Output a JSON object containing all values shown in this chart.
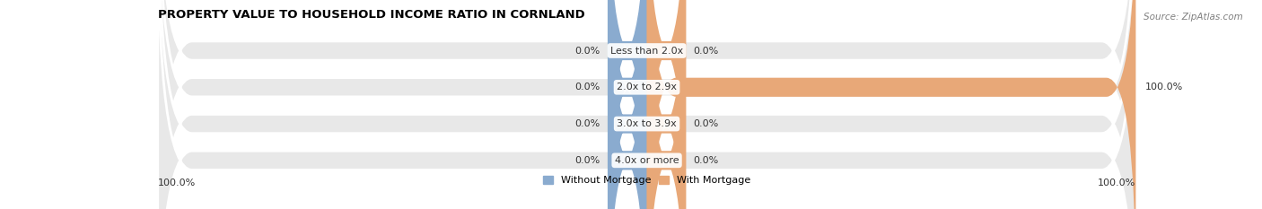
{
  "title": "PROPERTY VALUE TO HOUSEHOLD INCOME RATIO IN CORNLAND",
  "source": "Source: ZipAtlas.com",
  "categories": [
    "Less than 2.0x",
    "2.0x to 2.9x",
    "3.0x to 3.9x",
    "4.0x or more"
  ],
  "without_mortgage": [
    0.0,
    0.0,
    0.0,
    0.0
  ],
  "with_mortgage": [
    0.0,
    100.0,
    0.0,
    0.0
  ],
  "left_label": "100.0%",
  "right_label": "100.0%",
  "color_without": "#8aabcf",
  "color_with": "#e8a878",
  "bg_bar": "#e8e8e8",
  "fig_width": 14.06,
  "fig_height": 2.33
}
